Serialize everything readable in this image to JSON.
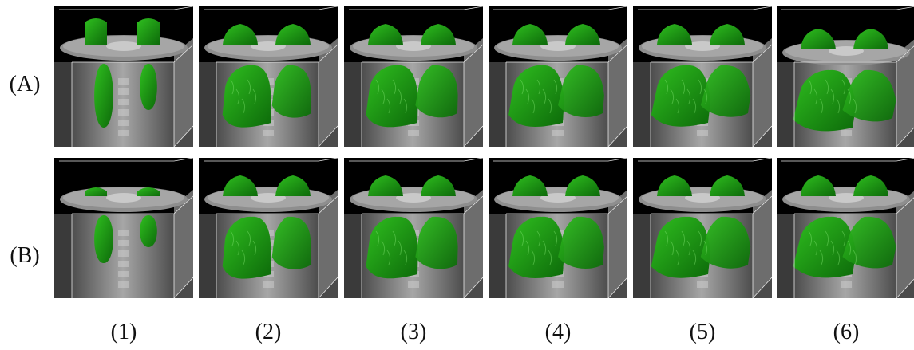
{
  "figure": {
    "rows": [
      {
        "label": "(A)"
      },
      {
        "label": "(B)"
      }
    ],
    "columns": [
      {
        "label": "(1)"
      },
      {
        "label": "(2)"
      },
      {
        "label": "(3)"
      },
      {
        "label": "(4)"
      },
      {
        "label": "(5)"
      },
      {
        "label": "(6)"
      }
    ]
  },
  "colors": {
    "background": "#000000",
    "ct_gray": "#8e8e8e",
    "ct_light": "#b9b9b9",
    "lung_green": "#2fbf1f",
    "lung_dark": "#0d6a0a",
    "frame_line": "#e8e8e8"
  }
}
